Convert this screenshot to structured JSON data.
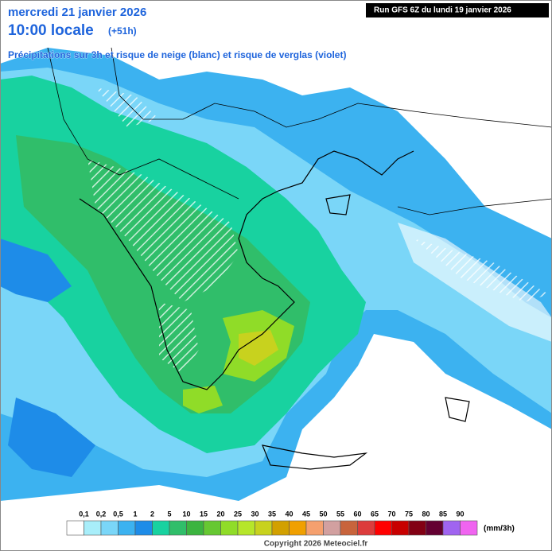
{
  "header": {
    "date": "mercredi 21 janvier 2026",
    "time": "10:00 locale",
    "lead": "(+51h)",
    "description": "Précipitations sur 3h et risque de neige (blanc) et risque de verglas (violet)",
    "run": "Run GFS 6Z du lundi 19 janvier 2026"
  },
  "legend": {
    "labels": [
      "0,1",
      "0,2",
      "0,5",
      "1",
      "2",
      "5",
      "10",
      "15",
      "20",
      "25",
      "30",
      "35",
      "40",
      "45",
      "50",
      "55",
      "60",
      "65",
      "70",
      "75",
      "80",
      "85",
      "90"
    ],
    "colors": [
      "#ffffff",
      "#a8eefa",
      "#7ad6f8",
      "#3cb2f0",
      "#1e8ce8",
      "#18d2a0",
      "#30be6a",
      "#3cb440",
      "#66c832",
      "#90dc28",
      "#b6e62a",
      "#c8d21e",
      "#d2a000",
      "#f0a000",
      "#f5a06e",
      "#d2a0a0",
      "#c8643c",
      "#dc3c3c",
      "#ff0000",
      "#c80000",
      "#820014",
      "#640032",
      "#a064f0",
      "#f064f0"
    ],
    "unit": "(mm/3h)"
  },
  "footer": {
    "copyright": "Copyright 2026 Meteociel.fr"
  }
}
